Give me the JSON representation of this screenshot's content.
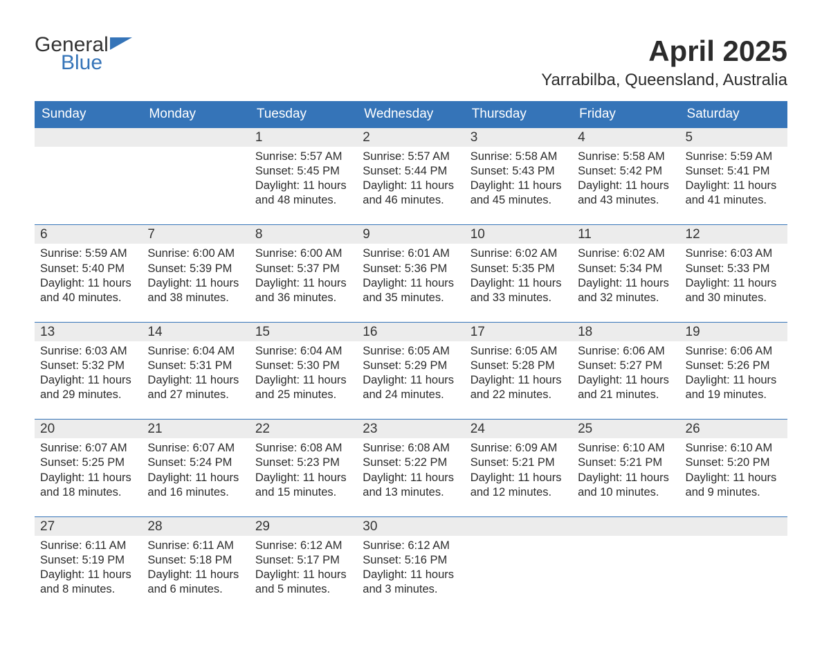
{
  "logo": {
    "general": "General",
    "blue": "Blue"
  },
  "title": "April 2025",
  "location": "Yarrabilba, Queensland, Australia",
  "colors": {
    "header_bg": "#3574b8",
    "header_text": "#ffffff",
    "week_top_border": "#3574b8",
    "daynum_bg": "#ececec",
    "body_text": "#2b2b2b",
    "page_bg": "#ffffff"
  },
  "dow": [
    "Sunday",
    "Monday",
    "Tuesday",
    "Wednesday",
    "Thursday",
    "Friday",
    "Saturday"
  ],
  "labels": {
    "sunrise": "Sunrise:",
    "sunset": "Sunset:",
    "daylight": "Daylight:"
  },
  "weeks": [
    [
      null,
      null,
      {
        "n": "1",
        "sunrise": "5:57 AM",
        "sunset": "5:45 PM",
        "daylight": "11 hours and 48 minutes."
      },
      {
        "n": "2",
        "sunrise": "5:57 AM",
        "sunset": "5:44 PM",
        "daylight": "11 hours and 46 minutes."
      },
      {
        "n": "3",
        "sunrise": "5:58 AM",
        "sunset": "5:43 PM",
        "daylight": "11 hours and 45 minutes."
      },
      {
        "n": "4",
        "sunrise": "5:58 AM",
        "sunset": "5:42 PM",
        "daylight": "11 hours and 43 minutes."
      },
      {
        "n": "5",
        "sunrise": "5:59 AM",
        "sunset": "5:41 PM",
        "daylight": "11 hours and 41 minutes."
      }
    ],
    [
      {
        "n": "6",
        "sunrise": "5:59 AM",
        "sunset": "5:40 PM",
        "daylight": "11 hours and 40 minutes."
      },
      {
        "n": "7",
        "sunrise": "6:00 AM",
        "sunset": "5:39 PM",
        "daylight": "11 hours and 38 minutes."
      },
      {
        "n": "8",
        "sunrise": "6:00 AM",
        "sunset": "5:37 PM",
        "daylight": "11 hours and 36 minutes."
      },
      {
        "n": "9",
        "sunrise": "6:01 AM",
        "sunset": "5:36 PM",
        "daylight": "11 hours and 35 minutes."
      },
      {
        "n": "10",
        "sunrise": "6:02 AM",
        "sunset": "5:35 PM",
        "daylight": "11 hours and 33 minutes."
      },
      {
        "n": "11",
        "sunrise": "6:02 AM",
        "sunset": "5:34 PM",
        "daylight": "11 hours and 32 minutes."
      },
      {
        "n": "12",
        "sunrise": "6:03 AM",
        "sunset": "5:33 PM",
        "daylight": "11 hours and 30 minutes."
      }
    ],
    [
      {
        "n": "13",
        "sunrise": "6:03 AM",
        "sunset": "5:32 PM",
        "daylight": "11 hours and 29 minutes."
      },
      {
        "n": "14",
        "sunrise": "6:04 AM",
        "sunset": "5:31 PM",
        "daylight": "11 hours and 27 minutes."
      },
      {
        "n": "15",
        "sunrise": "6:04 AM",
        "sunset": "5:30 PM",
        "daylight": "11 hours and 25 minutes."
      },
      {
        "n": "16",
        "sunrise": "6:05 AM",
        "sunset": "5:29 PM",
        "daylight": "11 hours and 24 minutes."
      },
      {
        "n": "17",
        "sunrise": "6:05 AM",
        "sunset": "5:28 PM",
        "daylight": "11 hours and 22 minutes."
      },
      {
        "n": "18",
        "sunrise": "6:06 AM",
        "sunset": "5:27 PM",
        "daylight": "11 hours and 21 minutes."
      },
      {
        "n": "19",
        "sunrise": "6:06 AM",
        "sunset": "5:26 PM",
        "daylight": "11 hours and 19 minutes."
      }
    ],
    [
      {
        "n": "20",
        "sunrise": "6:07 AM",
        "sunset": "5:25 PM",
        "daylight": "11 hours and 18 minutes."
      },
      {
        "n": "21",
        "sunrise": "6:07 AM",
        "sunset": "5:24 PM",
        "daylight": "11 hours and 16 minutes."
      },
      {
        "n": "22",
        "sunrise": "6:08 AM",
        "sunset": "5:23 PM",
        "daylight": "11 hours and 15 minutes."
      },
      {
        "n": "23",
        "sunrise": "6:08 AM",
        "sunset": "5:22 PM",
        "daylight": "11 hours and 13 minutes."
      },
      {
        "n": "24",
        "sunrise": "6:09 AM",
        "sunset": "5:21 PM",
        "daylight": "11 hours and 12 minutes."
      },
      {
        "n": "25",
        "sunrise": "6:10 AM",
        "sunset": "5:21 PM",
        "daylight": "11 hours and 10 minutes."
      },
      {
        "n": "26",
        "sunrise": "6:10 AM",
        "sunset": "5:20 PM",
        "daylight": "11 hours and 9 minutes."
      }
    ],
    [
      {
        "n": "27",
        "sunrise": "6:11 AM",
        "sunset": "5:19 PM",
        "daylight": "11 hours and 8 minutes."
      },
      {
        "n": "28",
        "sunrise": "6:11 AM",
        "sunset": "5:18 PM",
        "daylight": "11 hours and 6 minutes."
      },
      {
        "n": "29",
        "sunrise": "6:12 AM",
        "sunset": "5:17 PM",
        "daylight": "11 hours and 5 minutes."
      },
      {
        "n": "30",
        "sunrise": "6:12 AM",
        "sunset": "5:16 PM",
        "daylight": "11 hours and 3 minutes."
      },
      null,
      null,
      null
    ]
  ]
}
